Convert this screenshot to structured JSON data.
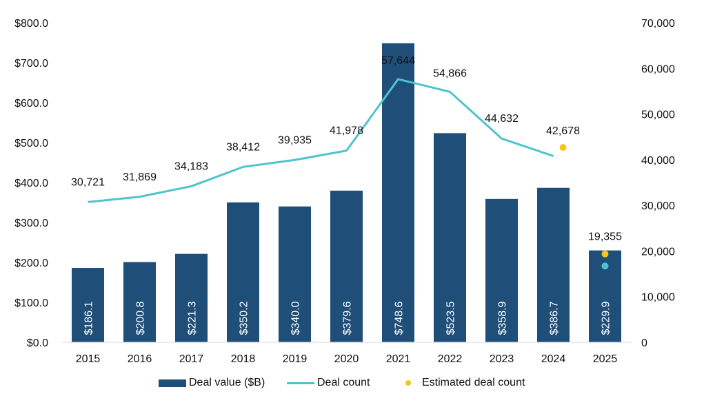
{
  "colors": {
    "bar": "#1F4E79",
    "line": "#4DC4CC",
    "estimate": "#F5C518",
    "text": "#111111",
    "bar_label": "#ffffff"
  },
  "legend": {
    "deal_value": "Deal value ($B)",
    "deal_count": "Deal count",
    "estimated": "Estimated deal count"
  },
  "chart_data": {
    "type": "bar",
    "categories": [
      "2015",
      "2016",
      "2017",
      "2018",
      "2019",
      "2020",
      "2021",
      "2022",
      "2023",
      "2024",
      "2025"
    ],
    "series": [
      {
        "name": "Deal value ($B)",
        "type": "bar",
        "axis": "left",
        "values": [
          186.1,
          200.8,
          221.3,
          350.2,
          340.0,
          379.6,
          748.6,
          523.5,
          358.9,
          386.7,
          229.9
        ],
        "labels": [
          "$186.1",
          "$200.8",
          "$221.3",
          "$350.2",
          "$340.0",
          "$379.6",
          "$748.6",
          "$523.5",
          "$358.9",
          "$386.7",
          "$229.9"
        ]
      },
      {
        "name": "Deal count",
        "type": "line",
        "axis": "right",
        "values": [
          30721,
          31869,
          34183,
          38412,
          39935,
          41978,
          57644,
          54866,
          44632,
          40800,
          16700
        ],
        "labels": [
          "30,721",
          "31,869",
          "34,183",
          "38,412",
          "39,935",
          "41,978",
          "57,644",
          "54,866",
          "44,632",
          "",
          ""
        ]
      },
      {
        "name": "Estimated deal count",
        "type": "scatter",
        "axis": "right",
        "points": [
          {
            "x": "2024",
            "y": 42678,
            "label": "42,678"
          },
          {
            "x": "2025",
            "y": 19355,
            "label": "19,355"
          }
        ]
      }
    ],
    "ylim_left": [
      0,
      800
    ],
    "ylim_right": [
      0,
      70000
    ],
    "left_ticks": [
      "$0.0",
      "$100.0",
      "$200.0",
      "$300.0",
      "$400.0",
      "$500.0",
      "$600.0",
      "$700.0",
      "$800.0"
    ],
    "right_ticks": [
      "0",
      "10,000",
      "20,000",
      "30,000",
      "40,000",
      "50,000",
      "60,000",
      "70,000"
    ],
    "grid": false,
    "legend_position": "bottom"
  }
}
